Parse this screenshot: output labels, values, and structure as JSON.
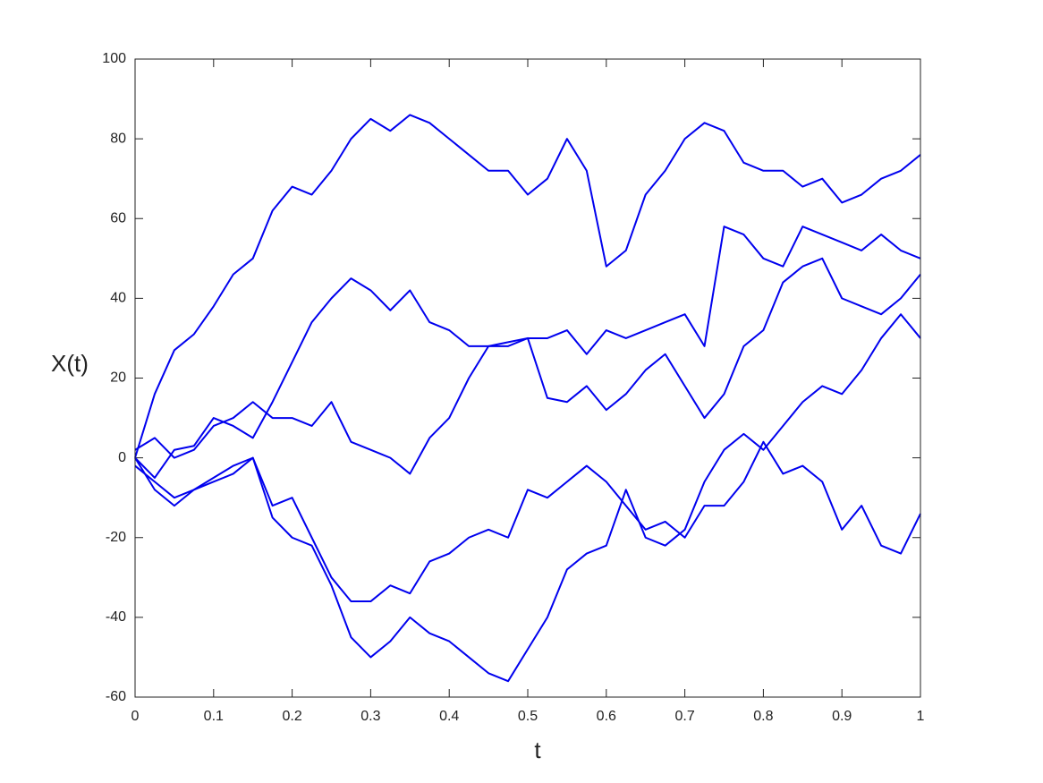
{
  "chart_data": {
    "type": "line",
    "x_label": "t",
    "y_label": "X(t)",
    "x": [
      0,
      0.025,
      0.05,
      0.075,
      0.1,
      0.125,
      0.15,
      0.175,
      0.2,
      0.225,
      0.25,
      0.275,
      0.3,
      0.325,
      0.35,
      0.375,
      0.4,
      0.425,
      0.45,
      0.475,
      0.5,
      0.525,
      0.55,
      0.575,
      0.6,
      0.625,
      0.65,
      0.675,
      0.7,
      0.725,
      0.75,
      0.775,
      0.8,
      0.825,
      0.85,
      0.875,
      0.9,
      0.925,
      0.95,
      0.975,
      1
    ],
    "series": [
      {
        "color": "#0000ee",
        "values": [
          0,
          16,
          27,
          31,
          38,
          46,
          50,
          62,
          68,
          66,
          72,
          80,
          85,
          82,
          86,
          84,
          80,
          76,
          72,
          72,
          66,
          70,
          80,
          72,
          48,
          52,
          66,
          72,
          80,
          84,
          82,
          74,
          72,
          72,
          68,
          70,
          64,
          66,
          70,
          72,
          76
        ]
      },
      {
        "color": "#0000ee",
        "values": [
          0,
          -5,
          2,
          3,
          10,
          8,
          5,
          14,
          24,
          34,
          40,
          45,
          42,
          37,
          42,
          34,
          32,
          28,
          28,
          29,
          30,
          30,
          32,
          26,
          32,
          30,
          32,
          34,
          36,
          28,
          58,
          56,
          50,
          48,
          58,
          56,
          54,
          52,
          56,
          52,
          50
        ]
      },
      {
        "color": "#0000ee",
        "values": [
          2,
          5,
          0,
          2,
          8,
          10,
          14,
          10,
          10,
          8,
          14,
          4,
          2,
          0,
          -4,
          5,
          10,
          20,
          28,
          28,
          30,
          15,
          14,
          18,
          12,
          16,
          22,
          26,
          18,
          10,
          16,
          28,
          32,
          44,
          48,
          50,
          40,
          38,
          36,
          40,
          46
        ]
      },
      {
        "color": "#0000ee",
        "values": [
          -2,
          -6,
          -10,
          -8,
          -5,
          -2,
          0,
          -12,
          -10,
          -20,
          -30,
          -36,
          -36,
          -32,
          -34,
          -26,
          -24,
          -20,
          -18,
          -20,
          -8,
          -10,
          -6,
          -2,
          -6,
          -12,
          -18,
          -16,
          -20,
          -12,
          -12,
          -6,
          4,
          -4,
          -2,
          -6,
          -18,
          -12,
          -22,
          -24,
          -14
        ]
      },
      {
        "color": "#0000ee",
        "values": [
          0,
          -8,
          -12,
          -8,
          -6,
          -4,
          0,
          -15,
          -20,
          -22,
          -32,
          -45,
          -50,
          -46,
          -40,
          -44,
          -46,
          -50,
          -54,
          -56,
          -48,
          -40,
          -28,
          -24,
          -22,
          -8,
          -20,
          -22,
          -18,
          -6,
          2,
          6,
          2,
          8,
          14,
          18,
          16,
          22,
          30,
          36,
          30
        ]
      }
    ],
    "xlim": [
      0,
      1
    ],
    "xticks": [
      0,
      0.1,
      0.2,
      0.3,
      0.4,
      0.5,
      0.6,
      0.7,
      0.8,
      0.9,
      1
    ],
    "ylim": [
      -60,
      100
    ],
    "yticks": [
      -60,
      -40,
      -20,
      0,
      20,
      40,
      60,
      80,
      100
    ],
    "grid": false
  }
}
